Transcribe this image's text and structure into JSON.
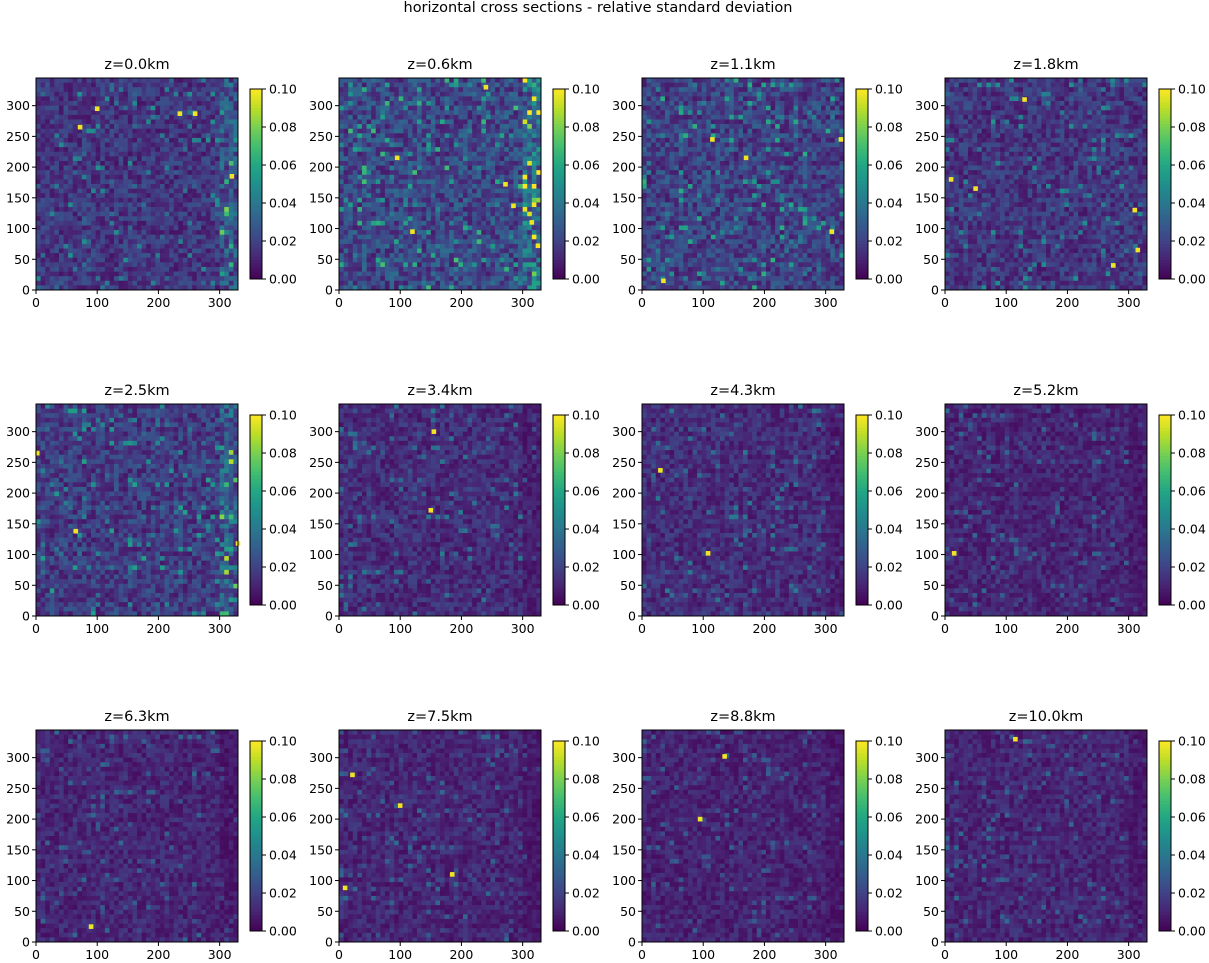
{
  "figure_title": "horizontal cross sections - relative standard deviation",
  "chart_data": {
    "type": "heatmap",
    "grid": {
      "rows": 3,
      "cols": 4
    },
    "shared_axes": {
      "xlim": [
        0,
        330
      ],
      "ylim": [
        0,
        345
      ],
      "xticks": [
        0,
        100,
        200,
        300
      ],
      "yticks": [
        0,
        50,
        100,
        150,
        200,
        250,
        300
      ],
      "xlabel": "",
      "ylabel": ""
    },
    "colorbar": {
      "range": [
        0.0,
        0.1
      ],
      "ticks": [
        "0.00",
        "0.02",
        "0.04",
        "0.06",
        "0.08",
        "0.10"
      ],
      "colormap": "viridis"
    },
    "panels": [
      {
        "title": "z=0.0km",
        "typical_value": 0.016,
        "hotspots": [
          [
            72,
            265
          ],
          [
            100,
            295
          ],
          [
            235,
            287
          ],
          [
            260,
            287
          ],
          [
            320,
            185
          ]
        ]
      },
      {
        "title": "z=0.6km",
        "typical_value": 0.022,
        "hotspots": [
          [
            95,
            215
          ],
          [
            120,
            95
          ],
          [
            272,
            172
          ],
          [
            285,
            137
          ],
          [
            315,
            110
          ],
          [
            325,
            72
          ],
          [
            240,
            330
          ]
        ]
      },
      {
        "title": "z=1.1km",
        "typical_value": 0.02,
        "hotspots": [
          [
            115,
            245
          ],
          [
            170,
            215
          ],
          [
            325,
            245
          ],
          [
            35,
            15
          ],
          [
            310,
            95
          ]
        ]
      },
      {
        "title": "z=1.8km",
        "typical_value": 0.016,
        "hotspots": [
          [
            130,
            310
          ],
          [
            10,
            180
          ],
          [
            50,
            165
          ],
          [
            310,
            130
          ],
          [
            315,
            65
          ],
          [
            275,
            40
          ]
        ]
      },
      {
        "title": "z=2.5km",
        "typical_value": 0.018,
        "hotspots": [
          [
            65,
            138
          ],
          [
            2,
            265
          ],
          [
            330,
            118
          ]
        ]
      },
      {
        "title": "z=3.4km",
        "typical_value": 0.013,
        "hotspots": [
          [
            155,
            300
          ],
          [
            150,
            172
          ]
        ]
      },
      {
        "title": "z=4.3km",
        "typical_value": 0.013,
        "hotspots": [
          [
            30,
            237
          ],
          [
            108,
            102
          ]
        ]
      },
      {
        "title": "z=5.2km",
        "typical_value": 0.011,
        "hotspots": [
          [
            15,
            102
          ]
        ]
      },
      {
        "title": "z=6.3km",
        "typical_value": 0.011,
        "hotspots": [
          [
            90,
            25
          ]
        ]
      },
      {
        "title": "z=7.5km",
        "typical_value": 0.011,
        "hotspots": [
          [
            22,
            272
          ],
          [
            100,
            222
          ],
          [
            10,
            88
          ],
          [
            185,
            110
          ]
        ]
      },
      {
        "title": "z=8.8km",
        "typical_value": 0.01,
        "hotspots": [
          [
            135,
            302
          ],
          [
            95,
            200
          ]
        ]
      },
      {
        "title": "z=10.0km",
        "typical_value": 0.011,
        "hotspots": [
          [
            115,
            330
          ]
        ]
      }
    ]
  }
}
